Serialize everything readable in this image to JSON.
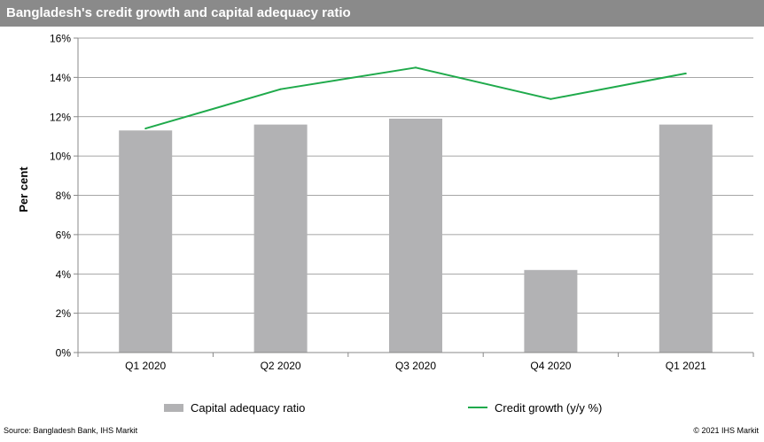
{
  "header": {
    "title": "Bangladesh's credit growth and capital adequacy ratio"
  },
  "colors": {
    "title_bar": "#8a8a8a",
    "bar": "#b2b2b4",
    "line": "#1faa4b",
    "grid": "#888888",
    "axis": "#888888"
  },
  "chart_data": {
    "type": "bar",
    "title": "Bangladesh's credit growth and capital adequacy ratio",
    "xlabel": "",
    "ylabel": "Per cent",
    "ylim": [
      0,
      16
    ],
    "yticks": [
      0,
      2,
      4,
      6,
      8,
      10,
      12,
      14,
      16
    ],
    "ytick_labels": [
      "0%",
      "2%",
      "4%",
      "6%",
      "8%",
      "10%",
      "12%",
      "14%",
      "16%"
    ],
    "categories": [
      "Q1 2020",
      "Q2 2020",
      "Q3 2020",
      "Q4 2020",
      "Q1 2021"
    ],
    "grid": true,
    "legend_position": "bottom",
    "series": [
      {
        "name": "Capital adequacy ratio",
        "type": "bar",
        "values": [
          11.3,
          11.6,
          11.9,
          4.2,
          11.6
        ]
      },
      {
        "name": "Credit growth (y/y %)",
        "type": "line",
        "values": [
          11.4,
          13.4,
          14.5,
          12.9,
          14.2
        ]
      }
    ]
  },
  "footer": {
    "source": "Source:  Bangladesh  Bank, IHS Markit",
    "copyright": "© 2021  IHS Markit"
  }
}
